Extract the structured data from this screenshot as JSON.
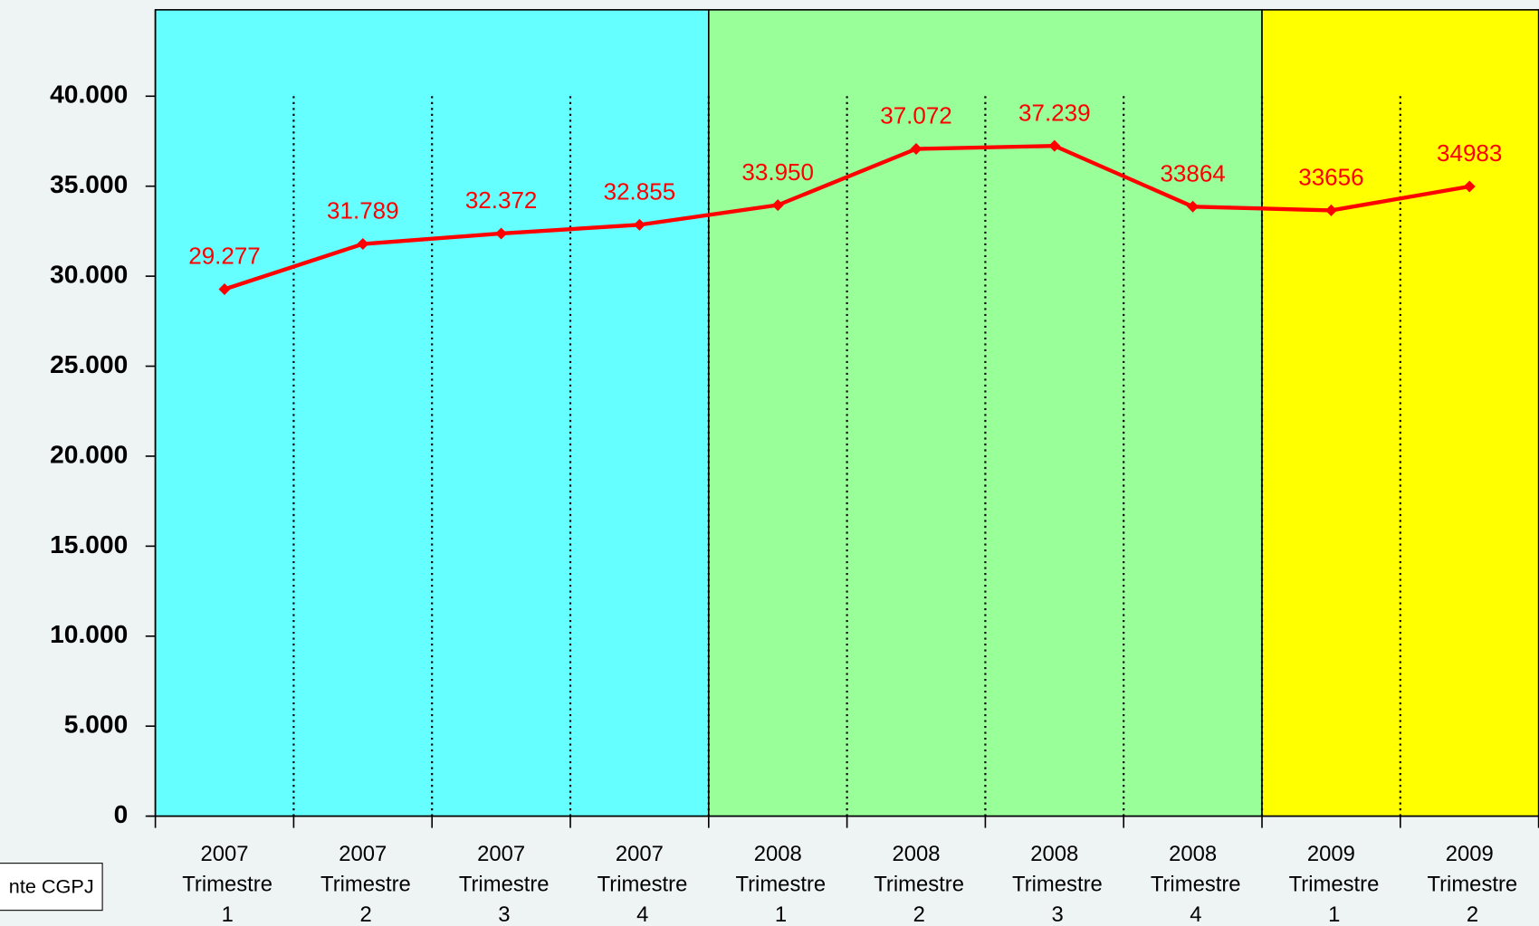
{
  "chart_data": {
    "type": "line",
    "categories": [
      "2007 Trimestre 1",
      "2007 Trimestre 2",
      "2007 Trimestre 3",
      "2007 Trimestre 4",
      "2008 Trimestre 1",
      "2008 Trimestre 2",
      "2008 Trimestre 3",
      "2008 Trimestre 4",
      "2009 Trimestre 1",
      "2009 Trimestre 2"
    ],
    "values": [
      29277,
      31789,
      32372,
      32855,
      33950,
      37072,
      37239,
      33864,
      33656,
      34983
    ],
    "value_labels": [
      "29.277",
      "31.789",
      "32.372",
      "32.855",
      "33.950",
      "37.072",
      "37.239",
      "33864",
      "33656",
      "34983"
    ],
    "color": "#ff0000",
    "band_colors": [
      "#66ffff",
      "#99ff99",
      "#ffff00"
    ],
    "ylim": [
      0,
      44800
    ],
    "yticks": [
      {
        "value": 0,
        "label": "0"
      },
      {
        "value": 5000,
        "label": "5.000"
      },
      {
        "value": 10000,
        "label": "10.000"
      },
      {
        "value": 15000,
        "label": "15.000"
      },
      {
        "value": 20000,
        "label": "20.000"
      },
      {
        "value": 25000,
        "label": "25.000"
      },
      {
        "value": 30000,
        "label": "30.000"
      },
      {
        "value": 35000,
        "label": "35.000"
      },
      {
        "value": 40000,
        "label": "40.000"
      }
    ],
    "source": "nte CGPJ"
  }
}
